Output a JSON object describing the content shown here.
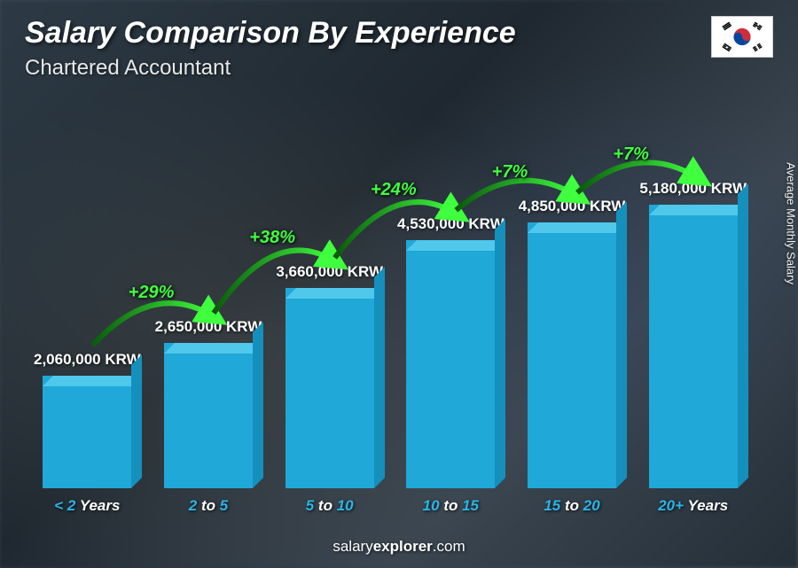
{
  "header": {
    "title": "Salary Comparison By Experience",
    "subtitle": "Chartered Accountant"
  },
  "y_axis_label": "Average Monthly Salary",
  "footer": {
    "prefix": "salary",
    "bold": "explorer",
    "suffix": ".com"
  },
  "chart": {
    "type": "bar",
    "currency": "KRW",
    "bar_color_front": "#1fa8d8",
    "bar_color_top": "#4fc8ec",
    "bar_color_side": "#1590bd",
    "x_label_highlight_color": "#29b6e8",
    "x_label_normal_color": "#ffffff",
    "increase_color": "#3fff3f",
    "arc_gradient_start": "#0a5a0a",
    "arc_gradient_end": "#3fff3f",
    "value_fontsize": 17,
    "xlabel_fontsize": 17,
    "increase_fontsize": 20,
    "max_value": 5180000,
    "bars": [
      {
        "label_hl": "< 2",
        "label_nm": " Years",
        "value": 2060000,
        "value_text": "2,060,000 KRW"
      },
      {
        "label_hl": "2",
        "label_nm": " to ",
        "label_hl2": "5",
        "value": 2650000,
        "value_text": "2,650,000 KRW",
        "increase": "+29%"
      },
      {
        "label_hl": "5",
        "label_nm": " to ",
        "label_hl2": "10",
        "value": 3660000,
        "value_text": "3,660,000 KRW",
        "increase": "+38%"
      },
      {
        "label_hl": "10",
        "label_nm": " to ",
        "label_hl2": "15",
        "value": 4530000,
        "value_text": "4,530,000 KRW",
        "increase": "+24%"
      },
      {
        "label_hl": "15",
        "label_nm": " to ",
        "label_hl2": "20",
        "value": 4850000,
        "value_text": "4,850,000 KRW",
        "increase": "+7%"
      },
      {
        "label_hl": "20+",
        "label_nm": " Years",
        "value": 5180000,
        "value_text": "5,180,000 KRW",
        "increase": "+7%"
      }
    ]
  },
  "flag": {
    "country": "South Korea"
  }
}
